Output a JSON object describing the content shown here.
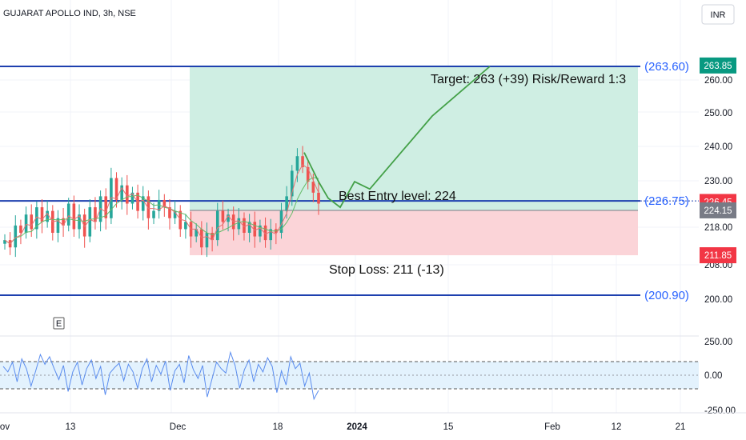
{
  "header": {
    "symbol_title": "GUJARAT APOLLO IND, 3h, NSE",
    "currency": "INR"
  },
  "colors": {
    "level_line": "#1e40af",
    "level_label": "#2962ff",
    "target_zone": "#cfeee3",
    "stop_zone": "#fbd4d8",
    "path_line": "#43a047",
    "candle_up": "#26a69a",
    "candle_down": "#ef5350",
    "ma_fast": "#e57373",
    "ma_slow": "#66bb6a",
    "oscillator": "#5b8def",
    "osc_band": "#e3f2fd",
    "badge_target": "#089981",
    "badge_price": "#f23645",
    "badge_entry": "#787b86",
    "badge_stop": "#f23645"
  },
  "chart_data": [
    {
      "type": "candlestick",
      "title": "GUJARAT APOLLO IND, 3h, NSE",
      "x_ticks": [
        "ov",
        "13",
        "Dec",
        "18",
        "2024",
        "15",
        "Feb",
        "12",
        "21"
      ],
      "y_ticks": [
        "260.00",
        "250.00",
        "240.00",
        "230.00",
        "218.00",
        "208.00",
        "200.00"
      ],
      "horizontal_levels": [
        {
          "value": 263.6,
          "label": "(263.60)"
        },
        {
          "value": 226.75,
          "label": "(226.75)"
        },
        {
          "value": 200.9,
          "label": "(200.90)"
        }
      ],
      "price_badges": [
        {
          "value": 263.85,
          "label": "263.85",
          "role": "target"
        },
        {
          "value": 226.45,
          "label": "226.45",
          "role": "price"
        },
        {
          "value": 224.15,
          "label": "224.15",
          "role": "entry"
        },
        {
          "value": 211.85,
          "label": "211.85",
          "role": "stop"
        }
      ],
      "position": {
        "entry": 224.15,
        "target": 263.85,
        "stop": 211.85
      },
      "annotations": [
        {
          "text": "Target: 263 (+39) Risk/Reward 1:3"
        },
        {
          "text": "Best Entry level: 224"
        },
        {
          "text": "Stop Loss: 211 (-13)"
        },
        {
          "text": "E"
        }
      ],
      "projection_path": [
        240,
        232,
        227.5,
        225,
        232,
        230,
        250,
        263.6
      ],
      "candles_close": [
        216,
        214,
        220,
        218,
        223,
        219,
        225,
        221,
        224,
        218,
        222,
        220,
        226,
        219,
        223,
        217,
        225,
        221,
        228,
        222,
        233,
        227,
        231,
        226,
        229,
        224,
        228,
        222,
        224,
        227,
        225,
        222,
        224,
        219,
        221,
        217,
        219,
        214,
        218,
        216,
        224,
        221,
        223,
        219,
        222,
        218,
        221,
        217,
        220,
        216,
        219,
        218,
        224,
        228,
        235,
        239,
        236,
        232,
        229,
        226
      ],
      "grid": true,
      "legend": "none"
    },
    {
      "type": "line",
      "title": "",
      "y_ticks": [
        "250.00",
        "0.00",
        "-250.00"
      ],
      "band": [
        -125,
        125
      ],
      "ylim": [
        -300,
        300
      ],
      "values": [
        80,
        30,
        120,
        -60,
        150,
        60,
        -100,
        40,
        190,
        100,
        170,
        60,
        -40,
        90,
        -150,
        30,
        120,
        -90,
        60,
        140,
        -30,
        80,
        -180,
        20,
        70,
        110,
        -50,
        100,
        30,
        -120,
        60,
        150,
        -60,
        90,
        10,
        130,
        -140,
        40,
        100,
        -70,
        180,
        50,
        -30,
        90,
        -200,
        -40,
        120,
        60,
        20,
        210,
        90,
        -120,
        50,
        140,
        -60,
        100,
        30,
        160,
        80,
        -160,
        40,
        -90,
        170,
        60,
        110,
        -100,
        20,
        -220,
        -140
      ]
    }
  ]
}
